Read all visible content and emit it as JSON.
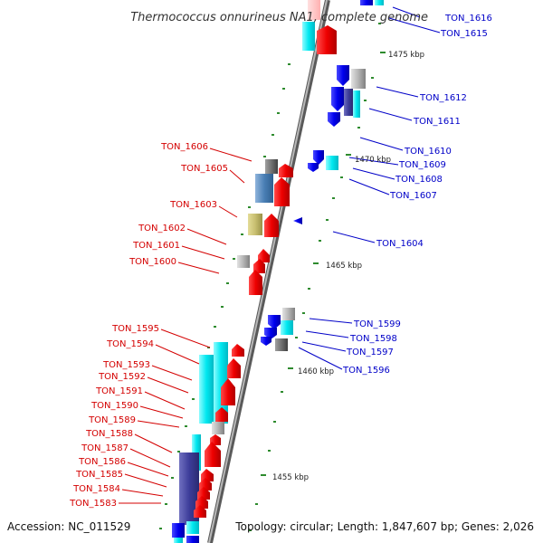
{
  "title": "Thermococcus onnurineus NA1, complete genome",
  "accession": "Accession: NC_011529",
  "topology": "Topology: circular; Length: 1,847,607 bp; Genes: 2,026",
  "colors": {
    "forward": "#ff0000",
    "reverse": "#0000ff",
    "cyan": "#00e5ee",
    "steel": "#4a7fb5",
    "navy": "#3d3d9a",
    "olive": "#c8bf70",
    "gray": "#a0a0a0",
    "backbone": "#808080",
    "tick": "#2e8b2e"
  },
  "kbp_markers": [
    "1475 kbp",
    "1470 kbp",
    "1465 kbp",
    "1460 kbp",
    "1455 kbp"
  ],
  "left_genes": [
    "TON_1606",
    "TON_1605",
    "TON_1603",
    "TON_1602",
    "TON_1601",
    "TON_1600",
    "TON_1595",
    "TON_1594",
    "TON_1593",
    "TON_1592",
    "TON_1591",
    "TON_1590",
    "TON_1589",
    "TON_1588",
    "TON_1587",
    "TON_1586",
    "TON_1585",
    "TON_1584",
    "TON_1583"
  ],
  "right_genes": [
    "TON_1616",
    "TON_1615",
    "TON_1612",
    "TON_1611",
    "TON_1610",
    "TON_1609",
    "TON_1608",
    "TON_1607",
    "TON_1604",
    "TON_1599",
    "TON_1598",
    "TON_1597",
    "TON_1596"
  ]
}
